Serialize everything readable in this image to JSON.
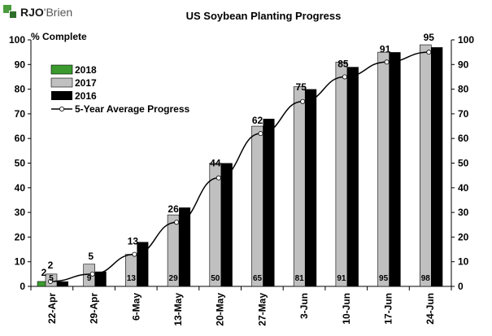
{
  "logo": {
    "part1": "RJO",
    "part2": "'Brien"
  },
  "chart_data": {
    "type": "bar",
    "title": "US Soybean Planting Progress",
    "ylabel": "% Complete",
    "xlabel": "",
    "ylim": [
      0,
      100
    ],
    "yticks": [
      0,
      10,
      20,
      30,
      40,
      50,
      60,
      70,
      80,
      90,
      100
    ],
    "grid": false,
    "categories": [
      "22-Apr",
      "29-Apr",
      "6-May",
      "13-May",
      "20-May",
      "27-May",
      "3-Jun",
      "10-Jun",
      "17-Jun",
      "24-Jun"
    ],
    "series": [
      {
        "name": "2018",
        "kind": "bar",
        "color": "#3a9a2e",
        "values": [
          2,
          null,
          null,
          null,
          null,
          null,
          null,
          null,
          null,
          null
        ],
        "labels": [
          "2",
          "",
          "",
          "",
          "",
          "",
          "",
          "",
          "",
          ""
        ]
      },
      {
        "name": "2017",
        "kind": "bar",
        "color": "#c0c0c0",
        "values": [
          5,
          9,
          13,
          29,
          50,
          65,
          81,
          91,
          95,
          98
        ],
        "labels": [
          "5",
          "9",
          "13",
          "29",
          "50",
          "65",
          "81",
          "91",
          "95",
          "98"
        ]
      },
      {
        "name": "2016",
        "kind": "bar",
        "color": "#000000",
        "values": [
          2,
          6,
          18,
          32,
          50,
          68,
          80,
          89,
          95,
          97
        ]
      },
      {
        "name": "5-Year Average Progress",
        "kind": "line",
        "color": "#000000",
        "values": [
          2,
          5,
          13,
          26,
          44,
          62,
          75,
          85,
          91,
          95
        ],
        "labels": [
          "2",
          "5",
          "13",
          "26",
          "44",
          "62",
          "75",
          "85",
          "91",
          "95"
        ]
      }
    ],
    "legend": [
      "2018",
      "2017",
      "2016",
      "5-Year Average Progress"
    ]
  }
}
